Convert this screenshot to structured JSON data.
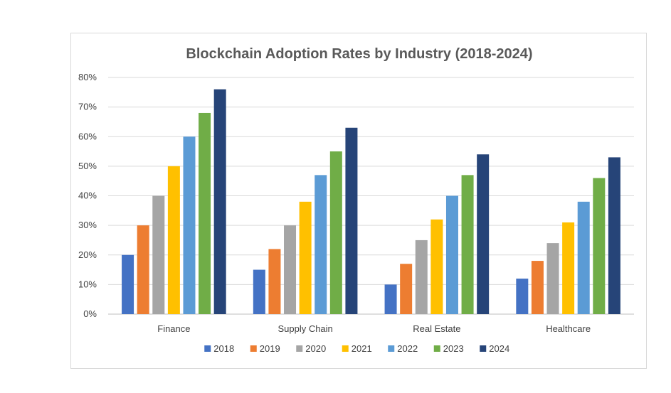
{
  "chart_data": {
    "type": "bar",
    "title": "Blockchain Adoption Rates by Industry (2018-2024)",
    "xlabel": "",
    "ylabel": "",
    "ylim": [
      0,
      80
    ],
    "yticks": [
      "0%",
      "10%",
      "20%",
      "30%",
      "40%",
      "50%",
      "60%",
      "70%",
      "80%"
    ],
    "ytick_values": [
      0,
      10,
      20,
      30,
      40,
      50,
      60,
      70,
      80
    ],
    "grid": true,
    "legend_position": "bottom",
    "categories": [
      "Finance",
      "Supply Chain",
      "Real Estate",
      "Healthcare"
    ],
    "series": [
      {
        "name": "2018",
        "color": "#4472c4",
        "values": [
          20,
          15,
          10,
          12
        ]
      },
      {
        "name": "2019",
        "color": "#ed7d31",
        "values": [
          30,
          22,
          17,
          18
        ]
      },
      {
        "name": "2020",
        "color": "#a5a5a5",
        "values": [
          40,
          30,
          25,
          24
        ]
      },
      {
        "name": "2021",
        "color": "#ffc000",
        "values": [
          50,
          38,
          32,
          31
        ]
      },
      {
        "name": "2022",
        "color": "#5b9bd5",
        "values": [
          60,
          47,
          40,
          38
        ]
      },
      {
        "name": "2023",
        "color": "#70ad47",
        "values": [
          68,
          55,
          47,
          46
        ]
      },
      {
        "name": "2024",
        "color": "#264478",
        "values": [
          76,
          63,
          54,
          53
        ]
      }
    ]
  }
}
